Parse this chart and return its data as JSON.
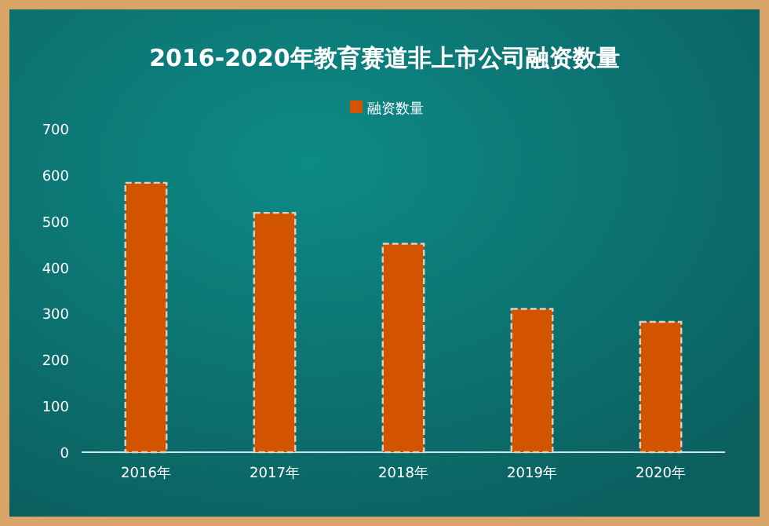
{
  "chart_data": {
    "type": "bar",
    "title": "2016-2020年教育赛道非上市公司融资数量",
    "categories": [
      "2016年",
      "2017年",
      "2018年",
      "2019年",
      "2020年"
    ],
    "series": [
      {
        "name": "融资数量",
        "color": "#d35400",
        "values": [
          583,
          518,
          451,
          310,
          282
        ]
      }
    ],
    "ylim": [
      0,
      700
    ],
    "yticks": [
      0,
      100,
      200,
      300,
      400,
      500,
      600,
      700
    ],
    "grid": false,
    "legend": "top"
  }
}
